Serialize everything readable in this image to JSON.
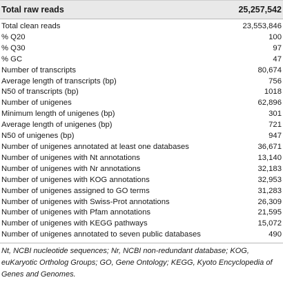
{
  "table": {
    "header": {
      "label": "Total raw reads",
      "value": "25,257,542"
    },
    "rows": [
      {
        "label": "Total clean reads",
        "value": "23,553,846"
      },
      {
        "label": "% Q20",
        "value": "100"
      },
      {
        "label": "% Q30",
        "value": "97"
      },
      {
        "label": "% GC",
        "value": "47"
      },
      {
        "label": "Number of transcripts",
        "value": "80,674"
      },
      {
        "label": "Average length of transcripts (bp)",
        "value": "756"
      },
      {
        "label": "N50 of transcripts (bp)",
        "value": "1018"
      },
      {
        "label": "Number of unigenes",
        "value": "62,896"
      },
      {
        "label": "Minimum length of unigenes (bp)",
        "value": "301"
      },
      {
        "label": "Average length of unigenes (bp)",
        "value": "721"
      },
      {
        "label": "N50 of unigenes (bp)",
        "value": "947"
      },
      {
        "label": "Number of unigenes annotated at least one databases",
        "value": "36,671"
      },
      {
        "label": "Number of unigenes with Nt annotations",
        "value": "13,140"
      },
      {
        "label": "Number of unigenes with Nr annotations",
        "value": "32,183"
      },
      {
        "label": "Number of unigenes with KOG annotations",
        "value": "32,953"
      },
      {
        "label": "Number of unigenes assigned to GO terms",
        "value": "31,283"
      },
      {
        "label": "Number of unigenes with Swiss-Prot annotations",
        "value": "26,309"
      },
      {
        "label": "Number of unigenes with Pfam annotations",
        "value": "21,595"
      },
      {
        "label": "Number of unigenes with KEGG pathways",
        "value": "15,072"
      },
      {
        "label": "Number of unigenes annotated to seven public databases",
        "value": "490"
      }
    ]
  },
  "footnote": {
    "lines": [
      "Nt, NCBI nucleotide sequences; Nr, NCBI non-redundant database; KOG,",
      "euKaryotic Ortholog Groups; GO, Gene Ontology; KEGG, Kyoto Encyclopedia of",
      "Genes and Genomes."
    ]
  }
}
